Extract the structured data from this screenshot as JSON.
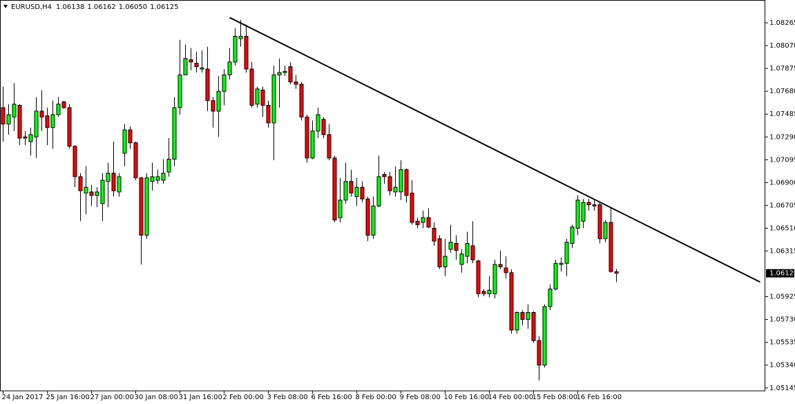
{
  "chart_data": {
    "type": "candlestick",
    "header": {
      "symbol": "EURUSD,H4",
      "ohlc": [
        "1.06138",
        "1.06162",
        "1.06050",
        "1.06125"
      ]
    },
    "categories": [
      "24 Jan 2017",
      null,
      null,
      null,
      null,
      null,
      null,
      null,
      "25 Jan 16:00",
      null,
      null,
      null,
      null,
      null,
      null,
      null,
      "27 Jan 00:00",
      null,
      null,
      null,
      null,
      null,
      null,
      null,
      "30 Jan 08:00",
      null,
      null,
      null,
      null,
      null,
      null,
      null,
      "31 Jan 16:00",
      null,
      null,
      null,
      null,
      null,
      null,
      null,
      "2 Feb 00:00",
      null,
      null,
      null,
      null,
      null,
      null,
      null,
      "3 Feb 08:00",
      null,
      null,
      null,
      null,
      null,
      null,
      null,
      "6 Feb 16:00",
      null,
      null,
      null,
      null,
      null,
      null,
      null,
      "8 Feb 00:00",
      null,
      null,
      null,
      null,
      null,
      null,
      null,
      "9 Feb 08:00",
      null,
      null,
      null,
      null,
      null,
      null,
      null,
      "10 Feb 16:00",
      null,
      null,
      null,
      null,
      null,
      null,
      null,
      "14 Feb 00:00",
      null,
      null,
      null,
      null,
      null,
      null,
      null,
      "15 Feb 08:00",
      null,
      null,
      null,
      null,
      null,
      null,
      null,
      "16 Feb 16:00",
      null,
      null,
      null,
      null,
      null,
      null,
      null
    ],
    "open": [
      1.0754,
      1.074,
      1.0746,
      1.0756,
      1.0729,
      1.0725,
      1.0729,
      1.0751,
      1.0747,
      1.0737,
      1.0748,
      1.0759,
      1.0754,
      1.0721,
      1.0695,
      1.0681,
      1.0682,
      1.0679,
      1.0672,
      1.0691,
      1.0698,
      1.0682,
      1.0715,
      1.0735,
      1.0724,
      1.0694,
      1.0645,
      1.0691,
      1.0692,
      1.0692,
      1.0699,
      1.071,
      1.0754,
      1.0782,
      1.0795,
      1.0792,
      1.0787,
      1.0787,
      1.076,
      1.0751,
      1.0768,
      1.0782,
      1.0793,
      1.0813,
      1.0815,
      1.0787,
      1.0757,
      1.0769,
      1.0756,
      1.0741,
      1.0782,
      1.0784,
      1.0789,
      1.0776,
      1.0774,
      1.0746,
      1.0711,
      1.0734,
      1.0744,
      1.0731,
      1.0711,
      1.066,
      1.0675,
      1.0691,
      1.0678,
      1.0686,
      1.0676,
      1.0645,
      1.067,
      1.0697,
      1.0695,
      1.0682,
      1.0682,
      1.0701,
      1.0681,
      1.0657,
      1.0656,
      1.066,
      1.0651,
      1.0642,
      1.0618,
      1.0633,
      1.0638,
      1.062,
      1.0627,
      1.0636,
      1.0623,
      1.0597,
      1.0595,
      1.0595,
      1.062,
      1.0617,
      1.0613,
      1.0564,
      1.0579,
      1.0573,
      1.0579,
      1.0555,
      1.0534,
      1.0584,
      1.0599,
      1.062,
      1.0621,
      1.0638,
      1.0651,
      1.0657,
      1.0673,
      1.0671,
      1.0671,
      1.0642,
      1.0656,
      1.06138
    ],
    "high": [
      1.0772,
      1.0757,
      1.0775,
      1.0757,
      1.0734,
      1.0737,
      1.0763,
      1.0769,
      1.0754,
      1.076,
      1.0763,
      1.076,
      1.0757,
      1.0722,
      1.0698,
      1.0704,
      1.0688,
      1.0686,
      1.0698,
      1.0707,
      1.0725,
      1.0698,
      1.074,
      1.0738,
      1.0725,
      1.0695,
      1.0698,
      1.0707,
      1.0701,
      1.071,
      1.0728,
      1.0763,
      1.0812,
      1.0808,
      1.0805,
      1.0802,
      1.0803,
      1.0806,
      1.0763,
      1.0781,
      1.0787,
      1.0805,
      1.0822,
      1.0829,
      1.0825,
      1.0793,
      1.0772,
      1.0772,
      1.076,
      1.079,
      1.0796,
      1.079,
      1.0793,
      1.0782,
      1.0776,
      1.0748,
      1.0743,
      1.0754,
      1.0746,
      1.074,
      1.0713,
      1.0694,
      1.0707,
      1.0701,
      1.0694,
      1.0691,
      1.0678,
      1.0678,
      1.0713,
      1.0699,
      1.0699,
      1.0704,
      1.0709,
      1.0702,
      1.0692,
      1.066,
      1.0666,
      1.0668,
      1.0656,
      1.0645,
      1.0642,
      1.0654,
      1.0645,
      1.0633,
      1.0648,
      1.0657,
      1.0624,
      1.0599,
      1.061,
      1.0624,
      1.0632,
      1.0627,
      1.0616,
      1.058,
      1.0581,
      1.0586,
      1.058,
      1.0559,
      1.0586,
      1.0603,
      1.0624,
      1.0626,
      1.0642,
      1.0654,
      1.0679,
      1.0676,
      1.0676,
      1.0675,
      1.0673,
      1.0658,
      1.0669,
      1.06162
    ],
    "low": [
      1.0725,
      1.0731,
      1.0734,
      1.0722,
      1.0722,
      1.0713,
      1.0711,
      1.0734,
      1.0722,
      1.0719,
      1.0746,
      1.0753,
      1.0719,
      1.0686,
      1.0657,
      1.0663,
      1.067,
      1.0669,
      1.0657,
      1.0669,
      1.0678,
      1.0678,
      1.0704,
      1.0719,
      1.0692,
      1.062,
      1.0642,
      1.0683,
      1.0689,
      1.0689,
      1.0695,
      1.0704,
      1.0748,
      1.0782,
      1.0786,
      1.0784,
      1.0784,
      1.0751,
      1.0737,
      1.0729,
      1.0756,
      1.0778,
      1.079,
      1.0806,
      1.0784,
      1.0754,
      1.0754,
      1.0746,
      1.0737,
      1.0709,
      1.0754,
      1.0781,
      1.0774,
      1.077,
      1.0743,
      1.0707,
      1.071,
      1.0728,
      1.0728,
      1.0709,
      1.0656,
      1.0656,
      1.0672,
      1.0678,
      1.067,
      1.0673,
      1.064,
      1.0642,
      1.0669,
      1.0689,
      1.0679,
      1.0678,
      1.0675,
      1.0673,
      1.0654,
      1.0651,
      1.0651,
      1.0651,
      1.0636,
      1.0616,
      1.061,
      1.063,
      1.0624,
      1.0613,
      1.0621,
      1.0621,
      1.0592,
      1.0593,
      1.0592,
      1.0591,
      1.0616,
      1.0608,
      1.0561,
      1.0561,
      1.0568,
      1.0565,
      1.0553,
      1.0521,
      1.0532,
      1.0581,
      1.0598,
      1.0614,
      1.061,
      1.0634,
      1.0645,
      1.0651,
      1.0666,
      1.0666,
      1.0638,
      1.0639,
      1.0613,
      1.0605
    ],
    "close": [
      1.074,
      1.0748,
      1.0757,
      1.0728,
      1.0728,
      1.0731,
      1.0751,
      1.0746,
      1.0737,
      1.0748,
      1.0757,
      1.0754,
      1.0721,
      1.0695,
      1.0683,
      1.0686,
      1.0679,
      1.0682,
      1.0692,
      1.0698,
      1.0683,
      1.0695,
      1.0735,
      1.0724,
      1.0694,
      1.0645,
      1.0694,
      1.0695,
      1.0695,
      1.0698,
      1.071,
      1.0754,
      1.0782,
      1.0796,
      1.0793,
      1.0789,
      1.0788,
      1.076,
      1.0751,
      1.0768,
      1.0782,
      1.0793,
      1.0815,
      1.0815,
      1.0787,
      1.0756,
      1.077,
      1.0756,
      1.0741,
      1.0782,
      1.0784,
      1.0785,
      1.0776,
      1.0774,
      1.0746,
      1.0711,
      1.0734,
      1.0748,
      1.0731,
      1.0711,
      1.0658,
      1.0675,
      1.0691,
      1.0681,
      1.0686,
      1.0676,
      1.0645,
      1.067,
      1.0695,
      1.0695,
      1.0683,
      1.0686,
      1.0701,
      1.0679,
      1.0656,
      1.0654,
      1.066,
      1.0652,
      1.064,
      1.0618,
      1.0627,
      1.0639,
      1.0632,
      1.0629,
      1.0638,
      1.0624,
      1.0595,
      1.0595,
      1.0598,
      1.062,
      1.0618,
      1.0613,
      1.0564,
      1.0579,
      1.0573,
      1.0579,
      1.0555,
      1.0534,
      1.0584,
      1.0599,
      1.0621,
      1.0621,
      1.0639,
      1.0652,
      1.0675,
      1.0673,
      1.0671,
      1.067,
      1.0642,
      1.0656,
      1.0614,
      1.06125
    ],
    "up_color": "#00ff00",
    "down_color": "#ff0000",
    "outline_color": "#000000",
    "ylim": [
      1.0512,
      1.0846
    ],
    "yticks": [
      1.08265,
      {
        "value": 1.0807,
        "label": "1.08070"
      },
      1.07875,
      {
        "value": 1.0768,
        "label": "1.07680"
      },
      1.07485,
      {
        "value": 1.0729,
        "label": "1.07290"
      },
      1.07095,
      {
        "value": 1.069,
        "label": "1.06900"
      },
      1.06705,
      {
        "value": 1.0651,
        "label": "1.06510"
      },
      1.06315,
      1.05925,
      {
        "value": 1.0573,
        "label": "1.05730"
      },
      1.05535,
      {
        "value": 1.0534,
        "label": "1.05340"
      },
      1.05145
    ],
    "current_price": 1.06125,
    "trendline": {
      "start": [
        41,
        1.0831
      ],
      "end": [
        137,
        1.0605
      ],
      "color": "#000000"
    }
  }
}
